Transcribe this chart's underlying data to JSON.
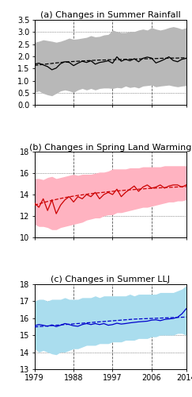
{
  "title_a": "(a) Changes in Summer Rainfall",
  "title_b": "(b) Changes in Spring Land Warming",
  "title_c": "(c) Changes in Summer LLJ",
  "years": [
    1979,
    1980,
    1981,
    1982,
    1983,
    1984,
    1985,
    1986,
    1987,
    1988,
    1989,
    1990,
    1991,
    1992,
    1993,
    1994,
    1995,
    1996,
    1997,
    1998,
    1999,
    2000,
    2001,
    2002,
    2003,
    2004,
    2005,
    2006,
    2007,
    2008,
    2009,
    2010,
    2011,
    2012,
    2013,
    2014
  ],
  "xticks": [
    1979,
    1988,
    1997,
    2006,
    2014
  ],
  "panel_a": {
    "obs_line": [
      1.68,
      1.72,
      1.65,
      1.58,
      1.45,
      1.52,
      1.7,
      1.78,
      1.75,
      1.62,
      1.72,
      1.8,
      1.75,
      1.82,
      1.68,
      1.75,
      1.78,
      1.82,
      1.72,
      1.98,
      1.8,
      1.88,
      1.82,
      1.9,
      1.78,
      1.92,
      1.97,
      1.93,
      1.73,
      1.8,
      1.88,
      1.98,
      1.83,
      1.78,
      1.88,
      1.92
    ],
    "trend_line": [
      1.63,
      1.65,
      1.67,
      1.69,
      1.71,
      1.73,
      1.75,
      1.77,
      1.78,
      1.79,
      1.8,
      1.81,
      1.82,
      1.83,
      1.84,
      1.85,
      1.85,
      1.86,
      1.86,
      1.87,
      1.87,
      1.88,
      1.88,
      1.89,
      1.89,
      1.9,
      1.9,
      1.91,
      1.91,
      1.92,
      1.92,
      1.93,
      1.93,
      1.93,
      1.94,
      1.94
    ],
    "shading_upper": [
      2.58,
      2.62,
      2.68,
      2.65,
      2.62,
      2.58,
      2.62,
      2.68,
      2.75,
      2.7,
      2.72,
      2.75,
      2.78,
      2.85,
      2.8,
      2.82,
      2.88,
      2.9,
      3.08,
      3.02,
      2.98,
      2.98,
      3.02,
      3.02,
      3.08,
      3.12,
      3.08,
      3.18,
      3.12,
      3.08,
      3.12,
      3.18,
      3.22,
      3.18,
      3.12,
      3.18
    ],
    "shading_lower": [
      0.52,
      0.58,
      0.48,
      0.42,
      0.38,
      0.48,
      0.58,
      0.62,
      0.58,
      0.52,
      0.62,
      0.68,
      0.62,
      0.68,
      0.62,
      0.68,
      0.7,
      0.7,
      0.68,
      0.72,
      0.7,
      0.78,
      0.72,
      0.75,
      0.7,
      0.78,
      0.8,
      0.82,
      0.75,
      0.78,
      0.8,
      0.82,
      0.78,
      0.75,
      0.78,
      0.8
    ],
    "ylim": [
      0.0,
      3.5
    ],
    "yticks": [
      0.0,
      0.5,
      1.0,
      1.5,
      2.0,
      2.5,
      3.0,
      3.5
    ],
    "shade_color": "#b8b8b8",
    "line_color": "#000000"
  },
  "panel_b": {
    "obs_line": [
      13.2,
      12.8,
      13.6,
      12.5,
      13.5,
      12.2,
      13.0,
      13.5,
      13.8,
      13.3,
      13.8,
      13.6,
      14.0,
      13.8,
      14.2,
      13.6,
      14.0,
      14.2,
      14.0,
      14.5,
      13.8,
      14.2,
      14.5,
      14.8,
      14.3,
      14.7,
      14.9,
      14.6,
      14.7,
      14.9,
      14.6,
      14.8,
      14.9,
      14.9,
      14.7,
      14.9
    ],
    "trend_line": [
      13.0,
      13.12,
      13.24,
      13.35,
      13.45,
      13.54,
      13.63,
      13.71,
      13.79,
      13.85,
      13.92,
      13.97,
      14.03,
      14.08,
      14.13,
      14.17,
      14.21,
      14.26,
      14.3,
      14.34,
      14.37,
      14.41,
      14.44,
      14.47,
      14.5,
      14.53,
      14.56,
      14.58,
      14.61,
      14.63,
      14.65,
      14.67,
      14.69,
      14.71,
      14.73,
      14.75
    ],
    "shading_upper": [
      15.5,
      15.5,
      15.4,
      15.6,
      15.7,
      15.5,
      15.6,
      15.7,
      15.8,
      15.9,
      15.8,
      15.9,
      15.9,
      15.9,
      16.0,
      16.1,
      16.1,
      16.2,
      16.4,
      16.4,
      16.4,
      16.4,
      16.5,
      16.5,
      16.5,
      16.6,
      16.6,
      16.6,
      16.6,
      16.6,
      16.7,
      16.7,
      16.7,
      16.7,
      16.7,
      16.7
    ],
    "shading_lower": [
      11.2,
      11.0,
      11.0,
      10.9,
      10.7,
      10.7,
      10.9,
      11.0,
      11.1,
      11.2,
      11.3,
      11.4,
      11.6,
      11.7,
      11.8,
      11.8,
      12.0,
      12.1,
      12.1,
      12.3,
      12.3,
      12.4,
      12.5,
      12.6,
      12.7,
      12.8,
      12.8,
      12.9,
      13.0,
      13.1,
      13.2,
      13.3,
      13.3,
      13.4,
      13.4,
      13.5
    ],
    "ylim": [
      10,
      18
    ],
    "yticks": [
      10,
      12,
      14,
      16,
      18
    ],
    "shade_color": "#ffb3c1",
    "line_color": "#cc0000"
  },
  "panel_c": {
    "obs_line": [
      15.55,
      15.62,
      15.58,
      15.52,
      15.6,
      15.5,
      15.58,
      15.68,
      15.62,
      15.55,
      15.52,
      15.62,
      15.68,
      15.62,
      15.68,
      15.62,
      15.68,
      15.58,
      15.62,
      15.7,
      15.65,
      15.68,
      15.72,
      15.75,
      15.78,
      15.8,
      15.82,
      15.88,
      15.9,
      15.85,
      15.92,
      15.95,
      15.98,
      16.05,
      16.25,
      16.55
    ],
    "trend_line": [
      15.48,
      15.5,
      15.52,
      15.54,
      15.56,
      15.58,
      15.6,
      15.62,
      15.64,
      15.66,
      15.68,
      15.7,
      15.72,
      15.74,
      15.76,
      15.78,
      15.8,
      15.82,
      15.84,
      15.86,
      15.88,
      15.9,
      15.92,
      15.94,
      15.95,
      15.96,
      15.97,
      15.98,
      15.99,
      16.0,
      16.01,
      16.02,
      16.03,
      16.04,
      16.05,
      16.06
    ],
    "shading_upper": [
      17.0,
      17.1,
      17.1,
      17.0,
      17.1,
      17.1,
      17.1,
      17.2,
      17.1,
      17.1,
      17.1,
      17.2,
      17.2,
      17.2,
      17.3,
      17.2,
      17.3,
      17.3,
      17.3,
      17.3,
      17.3,
      17.3,
      17.4,
      17.3,
      17.4,
      17.4,
      17.4,
      17.4,
      17.4,
      17.5,
      17.5,
      17.5,
      17.5,
      17.6,
      17.7,
      17.9
    ],
    "shading_lower": [
      14.2,
      14.0,
      14.1,
      14.0,
      13.9,
      13.85,
      14.0,
      14.0,
      14.1,
      14.2,
      14.2,
      14.3,
      14.4,
      14.4,
      14.4,
      14.5,
      14.5,
      14.5,
      14.6,
      14.6,
      14.6,
      14.7,
      14.7,
      14.7,
      14.8,
      14.8,
      14.8,
      14.9,
      14.9,
      15.0,
      15.0,
      15.0,
      15.0,
      15.1,
      15.1,
      15.0
    ],
    "ylim": [
      13.0,
      18.0
    ],
    "yticks": [
      13.0,
      14.0,
      15.0,
      16.0,
      17.0,
      18.0
    ],
    "shade_color": "#aaddee",
    "line_color": "#0000cc"
  },
  "bg_color": "#ffffff",
  "title_fontsize": 8.0,
  "tick_fontsize": 7.0,
  "label_fontsize": 7.0
}
